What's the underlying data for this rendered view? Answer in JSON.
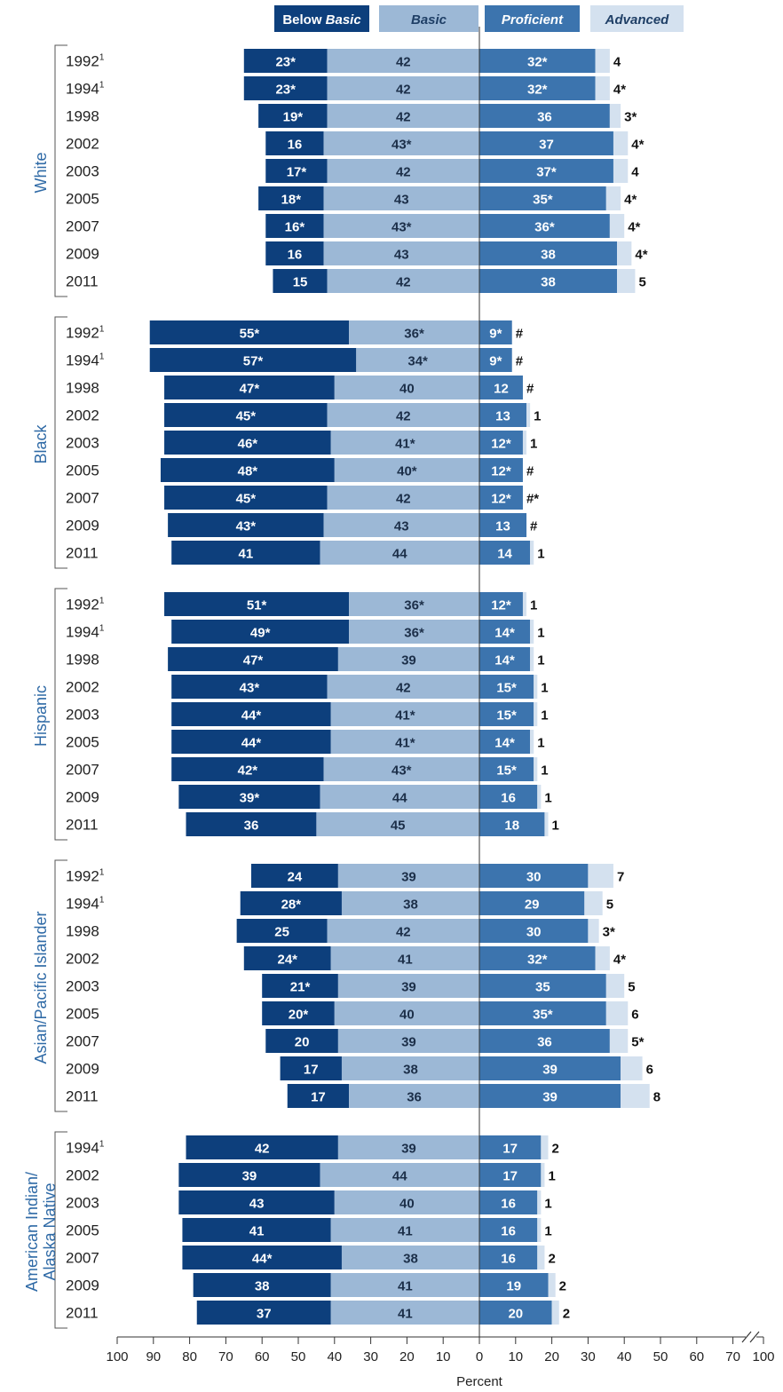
{
  "chart_data": {
    "type": "bar",
    "orientation": "horizontal",
    "stacked": "diverging",
    "xlabel": "Percent",
    "x_ticks_left": [
      "100",
      "90",
      "80",
      "70",
      "60",
      "50",
      "40",
      "30",
      "20",
      "10",
      "0"
    ],
    "x_ticks_right": [
      "10",
      "20",
      "30",
      "40",
      "50",
      "60",
      "70",
      "100"
    ],
    "legend": [
      {
        "key": "below_basic",
        "label": "Below Basic",
        "color": "#0d3f7c"
      },
      {
        "key": "basic",
        "label": "Basic",
        "color": "#9cb8d6"
      },
      {
        "key": "proficient",
        "label": "Proficient",
        "color": "#3c74ae"
      },
      {
        "key": "advanced",
        "label": "Advanced",
        "color": "#d4e1ef"
      }
    ],
    "groups": [
      {
        "name": "White",
        "rows": [
          {
            "year": "1992",
            "note": "1",
            "values": [
              23,
              42,
              32,
              4
            ],
            "labels": [
              "23*",
              "42",
              "32*",
              "4"
            ]
          },
          {
            "year": "1994",
            "note": "1",
            "values": [
              23,
              42,
              32,
              4
            ],
            "labels": [
              "23*",
              "42",
              "32*",
              "4*"
            ]
          },
          {
            "year": "1998",
            "note": "",
            "values": [
              19,
              42,
              36,
              3
            ],
            "labels": [
              "19*",
              "42",
              "36",
              "3*"
            ]
          },
          {
            "year": "2002",
            "note": "",
            "values": [
              16,
              43,
              37,
              4
            ],
            "labels": [
              "16",
              "43*",
              "37",
              "4*"
            ]
          },
          {
            "year": "2003",
            "note": "",
            "values": [
              17,
              42,
              37,
              4
            ],
            "labels": [
              "17*",
              "42",
              "37*",
              "4"
            ]
          },
          {
            "year": "2005",
            "note": "",
            "values": [
              18,
              43,
              35,
              4
            ],
            "labels": [
              "18*",
              "43",
              "35*",
              "4*"
            ]
          },
          {
            "year": "2007",
            "note": "",
            "values": [
              16,
              43,
              36,
              4
            ],
            "labels": [
              "16*",
              "43*",
              "36*",
              "4*"
            ]
          },
          {
            "year": "2009",
            "note": "",
            "values": [
              16,
              43,
              38,
              4
            ],
            "labels": [
              "16",
              "43",
              "38",
              "4*"
            ]
          },
          {
            "year": "2011",
            "note": "",
            "values": [
              15,
              42,
              38,
              5
            ],
            "labels": [
              "15",
              "42",
              "38",
              "5"
            ]
          }
        ]
      },
      {
        "name": "Black",
        "rows": [
          {
            "year": "1992",
            "note": "1",
            "values": [
              55,
              36,
              9,
              0
            ],
            "labels": [
              "55*",
              "36*",
              "9*",
              "#"
            ]
          },
          {
            "year": "1994",
            "note": "1",
            "values": [
              57,
              34,
              9,
              0
            ],
            "labels": [
              "57*",
              "34*",
              "9*",
              "#"
            ]
          },
          {
            "year": "1998",
            "note": "",
            "values": [
              47,
              40,
              12,
              0
            ],
            "labels": [
              "47*",
              "40",
              "12",
              "#"
            ]
          },
          {
            "year": "2002",
            "note": "",
            "values": [
              45,
              42,
              13,
              1
            ],
            "labels": [
              "45*",
              "42",
              "13",
              "1"
            ]
          },
          {
            "year": "2003",
            "note": "",
            "values": [
              46,
              41,
              12,
              1
            ],
            "labels": [
              "46*",
              "41*",
              "12*",
              "1"
            ]
          },
          {
            "year": "2005",
            "note": "",
            "values": [
              48,
              40,
              12,
              0
            ],
            "labels": [
              "48*",
              "40*",
              "12*",
              "#"
            ]
          },
          {
            "year": "2007",
            "note": "",
            "values": [
              45,
              42,
              12,
              0
            ],
            "labels": [
              "45*",
              "42",
              "12*",
              "#*"
            ]
          },
          {
            "year": "2009",
            "note": "",
            "values": [
              43,
              43,
              13,
              0
            ],
            "labels": [
              "43*",
              "43",
              "13",
              "#"
            ]
          },
          {
            "year": "2011",
            "note": "",
            "values": [
              41,
              44,
              14,
              1
            ],
            "labels": [
              "41",
              "44",
              "14",
              "1"
            ]
          }
        ]
      },
      {
        "name": "Hispanic",
        "rows": [
          {
            "year": "1992",
            "note": "1",
            "values": [
              51,
              36,
              12,
              1
            ],
            "labels": [
              "51*",
              "36*",
              "12*",
              "1"
            ]
          },
          {
            "year": "1994",
            "note": "1",
            "values": [
              49,
              36,
              14,
              1
            ],
            "labels": [
              "49*",
              "36*",
              "14*",
              "1"
            ]
          },
          {
            "year": "1998",
            "note": "",
            "values": [
              47,
              39,
              14,
              1
            ],
            "labels": [
              "47*",
              "39",
              "14*",
              "1"
            ]
          },
          {
            "year": "2002",
            "note": "",
            "values": [
              43,
              42,
              15,
              1
            ],
            "labels": [
              "43*",
              "42",
              "15*",
              "1"
            ]
          },
          {
            "year": "2003",
            "note": "",
            "values": [
              44,
              41,
              15,
              1
            ],
            "labels": [
              "44*",
              "41*",
              "15*",
              "1"
            ]
          },
          {
            "year": "2005",
            "note": "",
            "values": [
              44,
              41,
              14,
              1
            ],
            "labels": [
              "44*",
              "41*",
              "14*",
              "1"
            ]
          },
          {
            "year": "2007",
            "note": "",
            "values": [
              42,
              43,
              15,
              1
            ],
            "labels": [
              "42*",
              "43*",
              "15*",
              "1"
            ]
          },
          {
            "year": "2009",
            "note": "",
            "values": [
              39,
              44,
              16,
              1
            ],
            "labels": [
              "39*",
              "44",
              "16",
              "1"
            ]
          },
          {
            "year": "2011",
            "note": "",
            "values": [
              36,
              45,
              18,
              1
            ],
            "labels": [
              "36",
              "45",
              "18",
              "1"
            ]
          }
        ]
      },
      {
        "name": "Asian/Pacific Islander",
        "rows": [
          {
            "year": "1992",
            "note": "1",
            "values": [
              24,
              39,
              30,
              7
            ],
            "labels": [
              "24",
              "39",
              "30",
              "7"
            ]
          },
          {
            "year": "1994",
            "note": "1",
            "values": [
              28,
              38,
              29,
              5
            ],
            "labels": [
              "28*",
              "38",
              "29",
              "5"
            ]
          },
          {
            "year": "1998",
            "note": "",
            "values": [
              25,
              42,
              30,
              3
            ],
            "labels": [
              "25",
              "42",
              "30",
              "3*"
            ]
          },
          {
            "year": "2002",
            "note": "",
            "values": [
              24,
              41,
              32,
              4
            ],
            "labels": [
              "24*",
              "41",
              "32*",
              "4*"
            ]
          },
          {
            "year": "2003",
            "note": "",
            "values": [
              21,
              39,
              35,
              5
            ],
            "labels": [
              "21*",
              "39",
              "35",
              "5"
            ]
          },
          {
            "year": "2005",
            "note": "",
            "values": [
              20,
              40,
              35,
              6
            ],
            "labels": [
              "20*",
              "40",
              "35*",
              "6"
            ]
          },
          {
            "year": "2007",
            "note": "",
            "values": [
              20,
              39,
              36,
              5
            ],
            "labels": [
              "20",
              "39",
              "36",
              "5*"
            ]
          },
          {
            "year": "2009",
            "note": "",
            "values": [
              17,
              38,
              39,
              6
            ],
            "labels": [
              "17",
              "38",
              "39",
              "6"
            ]
          },
          {
            "year": "2011",
            "note": "",
            "values": [
              17,
              36,
              39,
              8
            ],
            "labels": [
              "17",
              "36",
              "39",
              "8"
            ]
          }
        ]
      },
      {
        "name": "American Indian/\nAlaska Native",
        "rows": [
          {
            "year": "1994",
            "note": "1",
            "values": [
              42,
              39,
              17,
              2
            ],
            "labels": [
              "42",
              "39",
              "17",
              "2"
            ]
          },
          {
            "year": "2002",
            "note": "",
            "values": [
              39,
              44,
              17,
              1
            ],
            "labels": [
              "39",
              "44",
              "17",
              "1"
            ]
          },
          {
            "year": "2003",
            "note": "",
            "values": [
              43,
              40,
              16,
              1
            ],
            "labels": [
              "43",
              "40",
              "16",
              "1"
            ]
          },
          {
            "year": "2005",
            "note": "",
            "values": [
              41,
              41,
              16,
              1
            ],
            "labels": [
              "41",
              "41",
              "16",
              "1"
            ]
          },
          {
            "year": "2007",
            "note": "",
            "values": [
              44,
              38,
              16,
              2
            ],
            "labels": [
              "44*",
              "38",
              "16",
              "2"
            ]
          },
          {
            "year": "2009",
            "note": "",
            "values": [
              38,
              41,
              19,
              2
            ],
            "labels": [
              "38",
              "41",
              "19",
              "2"
            ]
          },
          {
            "year": "2011",
            "note": "",
            "values": [
              37,
              41,
              20,
              2
            ],
            "labels": [
              "37",
              "41",
              "20",
              "2"
            ]
          }
        ]
      }
    ]
  }
}
